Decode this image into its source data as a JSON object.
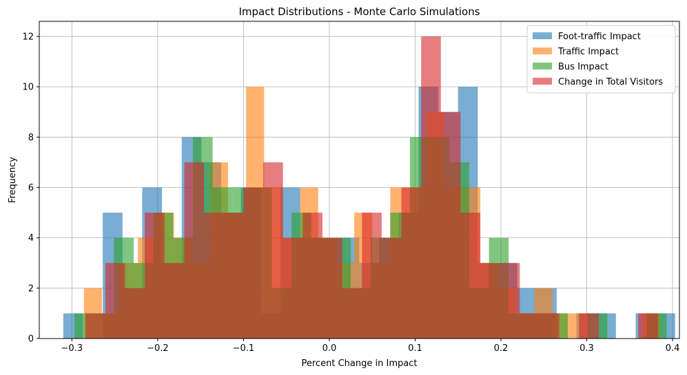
{
  "chart_data": {
    "type": "bar",
    "title": "Impact Distributions - Monte Carlo Simulations",
    "xlabel": "Percent Change in Impact",
    "ylabel": "Frequency",
    "xlim": [
      -0.338,
      0.408
    ],
    "ylim": [
      0,
      12.6
    ],
    "xticks": [
      -0.3,
      -0.2,
      -0.1,
      0.0,
      0.1,
      0.2,
      0.3,
      0.4
    ],
    "xtick_labels": [
      "−0.3",
      "−0.2",
      "−0.1",
      "0.0",
      "0.1",
      "0.2",
      "0.3",
      "0.4"
    ],
    "yticks": [
      0,
      2,
      4,
      6,
      8,
      10,
      12
    ],
    "ytick_labels": [
      "0",
      "2",
      "4",
      "6",
      "8",
      "10",
      "12"
    ],
    "grid": true,
    "legend_position": "top-right",
    "bar_opacity": 0.6,
    "series": [
      {
        "name": "Foot-traffic Impact",
        "color": "#1f77b4",
        "bins": [
          [
            -0.31,
            -0.287,
            1
          ],
          [
            -0.287,
            -0.264,
            0
          ],
          [
            -0.264,
            -0.241,
            5
          ],
          [
            -0.241,
            -0.218,
            2
          ],
          [
            -0.218,
            -0.195,
            6
          ],
          [
            -0.195,
            -0.172,
            3
          ],
          [
            -0.172,
            -0.149,
            8
          ],
          [
            -0.149,
            -0.126,
            7
          ],
          [
            -0.126,
            -0.103,
            5
          ],
          [
            -0.103,
            -0.08,
            6
          ],
          [
            -0.08,
            -0.057,
            1
          ],
          [
            -0.057,
            -0.034,
            6
          ],
          [
            -0.034,
            -0.011,
            4
          ],
          [
            -0.011,
            0.012,
            4
          ],
          [
            0.012,
            0.035,
            4
          ],
          [
            0.035,
            0.058,
            3
          ],
          [
            0.058,
            0.081,
            4
          ],
          [
            0.081,
            0.104,
            5
          ],
          [
            0.104,
            0.127,
            10
          ],
          [
            0.127,
            0.15,
            9
          ],
          [
            0.15,
            0.173,
            10
          ],
          [
            0.173,
            0.196,
            3
          ],
          [
            0.196,
            0.219,
            3
          ],
          [
            0.219,
            0.242,
            2
          ],
          [
            0.242,
            0.265,
            2
          ],
          [
            0.265,
            0.288,
            0
          ],
          [
            0.288,
            0.311,
            1
          ],
          [
            0.311,
            0.334,
            1
          ],
          [
            0.334,
            0.357,
            0
          ],
          [
            0.357,
            0.38,
            1
          ],
          [
            0.38,
            0.403,
            1
          ]
        ]
      },
      {
        "name": "Traffic Impact",
        "color": "#ff7f0e",
        "bins": [
          [
            -0.286,
            -0.265,
            2
          ],
          [
            -0.265,
            -0.244,
            1
          ],
          [
            -0.244,
            -0.223,
            3
          ],
          [
            -0.223,
            -0.202,
            4
          ],
          [
            -0.202,
            -0.181,
            5
          ],
          [
            -0.181,
            -0.16,
            4
          ],
          [
            -0.16,
            -0.139,
            3
          ],
          [
            -0.139,
            -0.118,
            7
          ],
          [
            -0.118,
            -0.097,
            5
          ],
          [
            -0.097,
            -0.076,
            10
          ],
          [
            -0.076,
            -0.055,
            6
          ],
          [
            -0.055,
            -0.034,
            4
          ],
          [
            -0.034,
            -0.013,
            6
          ],
          [
            -0.013,
            0.008,
            4
          ],
          [
            0.008,
            0.029,
            3
          ],
          [
            0.029,
            0.05,
            5
          ],
          [
            0.05,
            0.071,
            3
          ],
          [
            0.071,
            0.092,
            6
          ],
          [
            0.092,
            0.113,
            6
          ],
          [
            0.113,
            0.134,
            9
          ],
          [
            0.134,
            0.155,
            6
          ],
          [
            0.155,
            0.176,
            6
          ],
          [
            0.176,
            0.197,
            3
          ],
          [
            0.197,
            0.218,
            2
          ],
          [
            0.218,
            0.239,
            1
          ],
          [
            0.239,
            0.26,
            2
          ],
          [
            0.26,
            0.281,
            1
          ],
          [
            0.281,
            0.302,
            1
          ],
          [
            0.302,
            0.323,
            0
          ],
          [
            0.323,
            0.344,
            0
          ],
          [
            0.344,
            0.365,
            0
          ],
          [
            0.365,
            0.386,
            1
          ]
        ]
      },
      {
        "name": "Bus Impact",
        "color": "#2ca02c",
        "bins": [
          [
            -0.297,
            -0.274,
            1
          ],
          [
            -0.274,
            -0.251,
            1
          ],
          [
            -0.251,
            -0.228,
            4
          ],
          [
            -0.228,
            -0.205,
            3
          ],
          [
            -0.205,
            -0.182,
            5
          ],
          [
            -0.182,
            -0.159,
            4
          ],
          [
            -0.159,
            -0.136,
            8
          ],
          [
            -0.136,
            -0.113,
            6
          ],
          [
            -0.113,
            -0.09,
            6
          ],
          [
            -0.09,
            -0.067,
            6
          ],
          [
            -0.067,
            -0.044,
            2
          ],
          [
            -0.044,
            -0.021,
            5
          ],
          [
            -0.021,
            0.002,
            4
          ],
          [
            0.002,
            0.025,
            4
          ],
          [
            0.025,
            0.048,
            2
          ],
          [
            0.048,
            0.071,
            4
          ],
          [
            0.071,
            0.094,
            5
          ],
          [
            0.094,
            0.117,
            8
          ],
          [
            0.117,
            0.14,
            8
          ],
          [
            0.14,
            0.163,
            7
          ],
          [
            0.163,
            0.186,
            2
          ],
          [
            0.186,
            0.209,
            4
          ],
          [
            0.209,
            0.232,
            1
          ],
          [
            0.232,
            0.255,
            1
          ],
          [
            0.255,
            0.278,
            1
          ],
          [
            0.278,
            0.301,
            0
          ],
          [
            0.301,
            0.324,
            1
          ],
          [
            0.324,
            0.347,
            0
          ],
          [
            0.347,
            0.37,
            0
          ],
          [
            0.37,
            0.393,
            1
          ]
        ]
      },
      {
        "name": "Change in Total Visitors",
        "color": "#d62728",
        "bins": [
          [
            -0.284,
            -0.261,
            1
          ],
          [
            -0.261,
            -0.238,
            3
          ],
          [
            -0.238,
            -0.215,
            2
          ],
          [
            -0.215,
            -0.192,
            5
          ],
          [
            -0.192,
            -0.169,
            3
          ],
          [
            -0.169,
            -0.146,
            7
          ],
          [
            -0.146,
            -0.123,
            5
          ],
          [
            -0.123,
            -0.1,
            5
          ],
          [
            -0.1,
            -0.077,
            6
          ],
          [
            -0.077,
            -0.054,
            7
          ],
          [
            -0.054,
            -0.031,
            4
          ],
          [
            -0.031,
            -0.008,
            5
          ],
          [
            -0.008,
            0.015,
            4
          ],
          [
            0.015,
            0.038,
            2
          ],
          [
            0.038,
            0.061,
            5
          ],
          [
            0.061,
            0.084,
            4
          ],
          [
            0.084,
            0.107,
            6
          ],
          [
            0.107,
            0.13,
            12
          ],
          [
            0.13,
            0.153,
            9
          ],
          [
            0.153,
            0.176,
            5
          ],
          [
            0.176,
            0.199,
            3
          ],
          [
            0.199,
            0.222,
            3
          ],
          [
            0.222,
            0.245,
            1
          ],
          [
            0.245,
            0.268,
            1
          ],
          [
            0.268,
            0.291,
            0
          ],
          [
            0.291,
            0.314,
            1
          ],
          [
            0.314,
            0.337,
            0
          ],
          [
            0.337,
            0.36,
            0
          ],
          [
            0.36,
            0.383,
            1
          ]
        ]
      }
    ]
  }
}
